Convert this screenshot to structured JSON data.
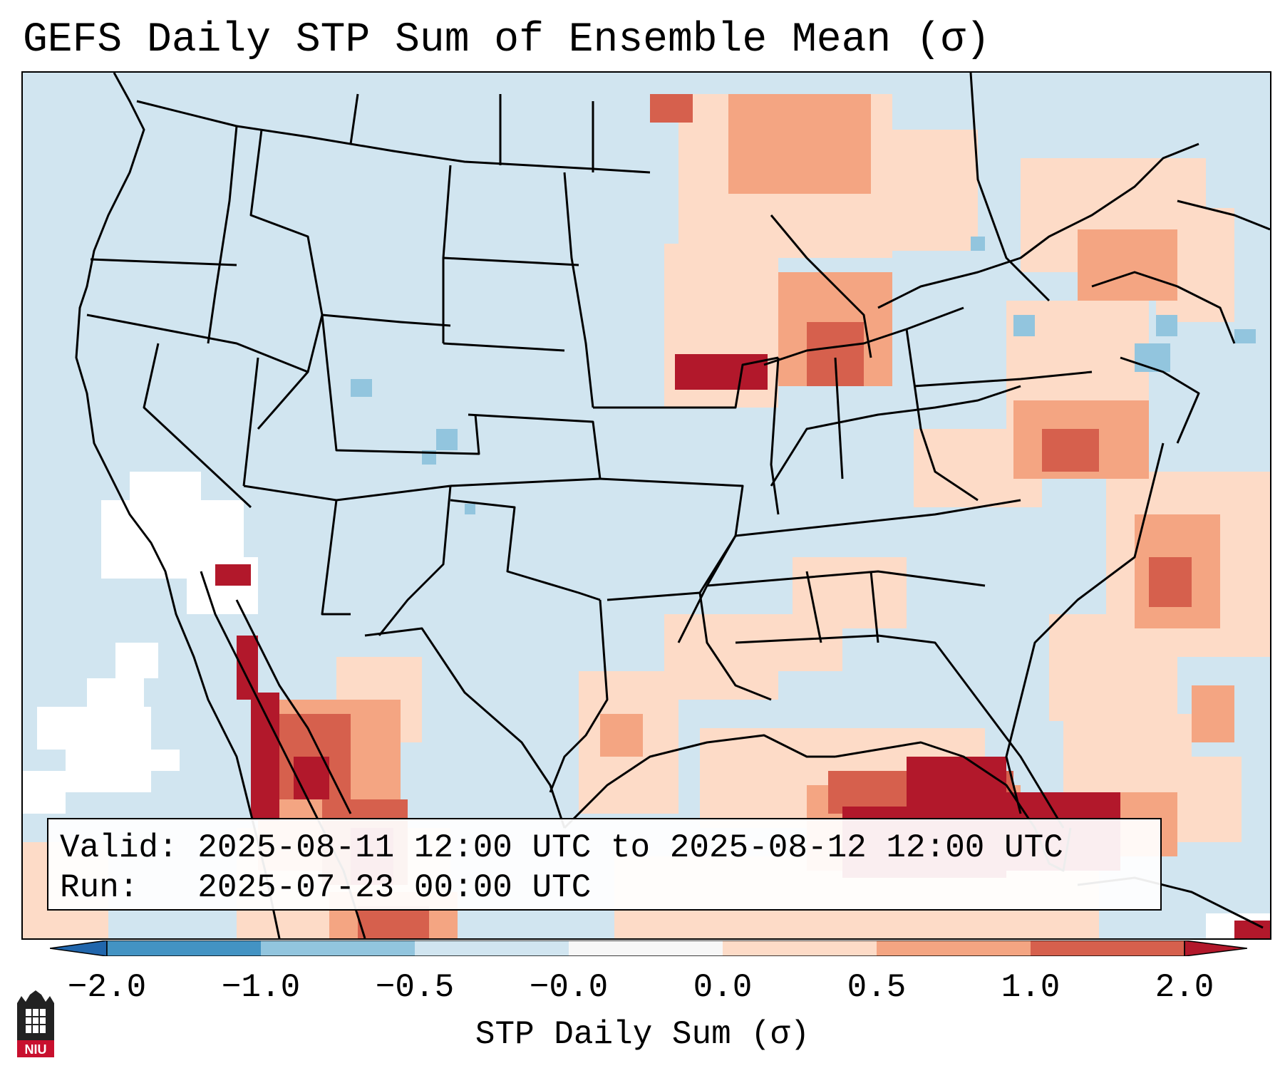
{
  "title": "GEFS Daily STP Sum of Ensemble Mean (σ)",
  "info": {
    "valid_line": "Valid: 2025-08-11 12:00 UTC to 2025-08-12 12:00 UTC",
    "run_line": "Run:   2025-07-23 00:00 UTC"
  },
  "colorbar": {
    "label": "STP Daily Sum (σ)",
    "ticks": [
      "−2.0",
      "−1.0",
      "−0.5",
      "−0.0",
      "0.0",
      "0.5",
      "1.0",
      "2.0"
    ],
    "colors": [
      "#4393c3",
      "#92c5de",
      "#d1e5f0",
      "#f7f7f7",
      "#fddbc7",
      "#f4a582",
      "#d6604d"
    ],
    "under_color": "#2166ac",
    "over_color": "#b2182b"
  },
  "map": {
    "region": "CONUS",
    "ocean_color": "#d1e5f0",
    "highlights": [
      {
        "area": "Iowa",
        "level": "high"
      },
      {
        "area": "Eastern Gulf of Mexico / Florida",
        "level": "high"
      },
      {
        "area": "Gulf of California / Northwest Mexico",
        "level": "high"
      },
      {
        "area": "Upper Midwest / Wisconsin",
        "level": "moderate"
      },
      {
        "area": "Pennsylvania / Mid-Atlantic",
        "level": "moderate"
      },
      {
        "area": "Western Atlantic off North Carolina",
        "level": "moderate"
      }
    ]
  },
  "logo": {
    "text": "NIU"
  }
}
